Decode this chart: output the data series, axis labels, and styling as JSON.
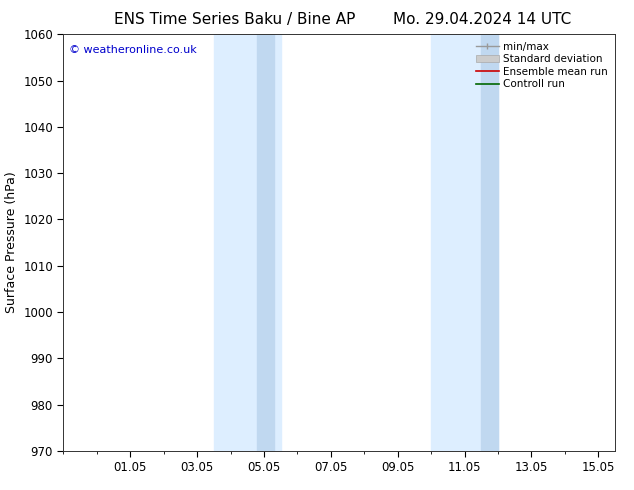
{
  "title_left": "ENS Time Series Baku / Bine AP",
  "title_right": "Mo. 29.04.2024 14 UTC",
  "ylabel": "Surface Pressure (hPa)",
  "watermark": "© weatheronline.co.uk",
  "watermark_color": "#0000cc",
  "ylim": [
    970,
    1060
  ],
  "yticks": [
    970,
    980,
    990,
    1000,
    1010,
    1020,
    1030,
    1040,
    1050,
    1060
  ],
  "xlim": [
    0.0,
    16.5
  ],
  "xtick_labels": [
    "01.05",
    "03.05",
    "05.05",
    "07.05",
    "09.05",
    "11.05",
    "13.05",
    "15.05"
  ],
  "xtick_positions": [
    2,
    4,
    6,
    8,
    10,
    12,
    14,
    16
  ],
  "shaded_bands": [
    {
      "x_start": 4.5,
      "x_end": 6.5,
      "color": "#ddeeff"
    },
    {
      "x_start": 5.8,
      "x_end": 6.3,
      "color": "#c0d8f0"
    },
    {
      "x_start": 11.0,
      "x_end": 13.0,
      "color": "#ddeeff"
    },
    {
      "x_start": 12.5,
      "x_end": 13.0,
      "color": "#c0d8f0"
    }
  ],
  "legend_items": [
    {
      "label": "min/max",
      "color": "#999999",
      "type": "errorbar"
    },
    {
      "label": "Standard deviation",
      "color": "#cccccc",
      "type": "patch"
    },
    {
      "label": "Ensemble mean run",
      "color": "#cc0000",
      "type": "line"
    },
    {
      "label": "Controll run",
      "color": "#006600",
      "type": "line"
    }
  ],
  "background_color": "#ffffff",
  "title_fontsize": 11,
  "axis_label_fontsize": 9,
  "tick_fontsize": 8.5,
  "watermark_fontsize": 8,
  "legend_fontsize": 7.5
}
